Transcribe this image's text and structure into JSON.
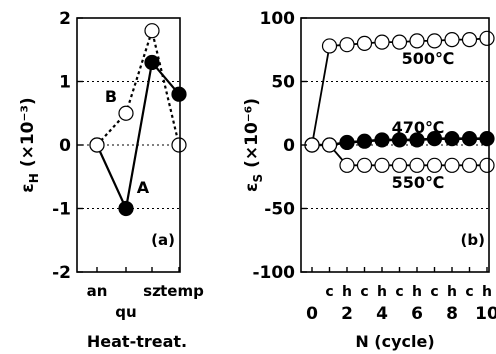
{
  "chart_data": [
    {
      "type": "line",
      "panel_label": "(a)",
      "xlabel": "Heat-treat.",
      "ylabel": "ε",
      "ylabel_sub": "H",
      "ylabel_unit": "(×10⁻³)",
      "ylim": [
        -2,
        2
      ],
      "yticks": [
        "2",
        "1",
        "0",
        "-1",
        "-2"
      ],
      "grid": "dotted horizontal at 1, 0, -1",
      "categories": [
        "an",
        "qu",
        "sz",
        "temp"
      ],
      "series": [
        {
          "name": "A",
          "style": "solid line, filled circles",
          "points": [
            {
              "x": "an",
              "y": 0.0
            },
            {
              "x": "qu",
              "y": -1.0
            },
            {
              "x": "sz",
              "y": 1.3
            },
            {
              "x": "temp",
              "y": 0.8
            }
          ]
        },
        {
          "name": "B",
          "style": "dotted line, open circles",
          "points": [
            {
              "x": "an",
              "y": 0.0
            },
            {
              "x": "qu",
              "y": 0.5
            },
            {
              "x": "sz",
              "y": 1.8
            },
            {
              "x": "temp",
              "y": 0.0
            }
          ]
        }
      ]
    },
    {
      "type": "line",
      "panel_label": "(b)",
      "xlabel": "N (cycle)",
      "ylabel": "ε",
      "ylabel_sub": "S",
      "ylabel_unit": "(×10⁻⁶)",
      "ylim": [
        -100,
        100
      ],
      "yticks": [
        "100",
        "50",
        "0",
        "-50",
        "-100"
      ],
      "xlim": [
        0,
        10
      ],
      "xticks": [
        "0",
        "2",
        "4",
        "6",
        "8",
        "10"
      ],
      "cycle_labels": [
        "c",
        "h",
        "c",
        "h",
        "c",
        "h",
        "c",
        "h",
        "c",
        "h"
      ],
      "grid": "dotted horizontal at 50, 0, -50",
      "series": [
        {
          "name": "500℃",
          "fill": "open",
          "x": [
            0,
            1,
            2,
            3,
            4,
            5,
            6,
            7,
            8,
            9,
            10
          ],
          "y": [
            0,
            78,
            79,
            80,
            81,
            81,
            82,
            82,
            83,
            83,
            84
          ]
        },
        {
          "name": "470℃",
          "fill": "filled",
          "x": [
            0,
            1,
            2,
            3,
            4,
            5,
            6,
            7,
            8,
            9,
            10
          ],
          "y": [
            0,
            0,
            2,
            3,
            4,
            4,
            4,
            5,
            5,
            5,
            5
          ]
        },
        {
          "name": "550℃",
          "fill": "open",
          "x": [
            0,
            1,
            2,
            3,
            4,
            5,
            6,
            7,
            8,
            9,
            10
          ],
          "y": [
            0,
            0,
            -16,
            -16,
            -16,
            -16,
            -16,
            -16,
            -16,
            -16,
            -16
          ]
        }
      ]
    }
  ]
}
